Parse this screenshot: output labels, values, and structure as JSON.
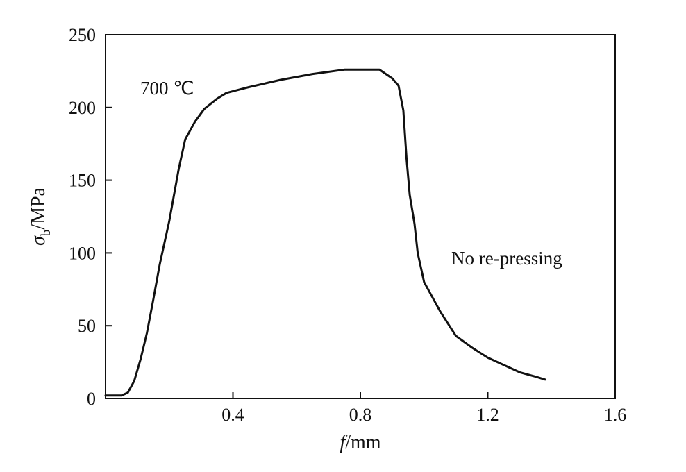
{
  "chart_data": {
    "type": "line",
    "xlabel": {
      "italic": "f",
      "rest": "/mm"
    },
    "ylabel": {
      "symbol": "σ",
      "subscript": "b",
      "rest": "/MPa"
    },
    "xlim": [
      0,
      1.6
    ],
    "ylim": [
      0,
      250
    ],
    "x_ticks": [
      0.4,
      0.8,
      1.2,
      1.6
    ],
    "x_tick_labels": [
      "0.4",
      "0.8",
      "1.2",
      "1.6"
    ],
    "y_ticks": [
      0,
      50,
      100,
      150,
      200,
      250
    ],
    "y_tick_labels": [
      "0",
      "50",
      "100",
      "150",
      "200",
      "250"
    ],
    "grid": false,
    "annotations": [
      "700 ℃",
      "No re-pressing"
    ],
    "series": [
      {
        "color": "#111111",
        "points": [
          [
            0.0,
            2
          ],
          [
            0.05,
            2
          ],
          [
            0.07,
            4
          ],
          [
            0.09,
            12
          ],
          [
            0.11,
            27
          ],
          [
            0.13,
            45
          ],
          [
            0.15,
            68
          ],
          [
            0.17,
            92
          ],
          [
            0.2,
            122
          ],
          [
            0.23,
            158
          ],
          [
            0.25,
            178
          ],
          [
            0.28,
            190
          ],
          [
            0.31,
            199
          ],
          [
            0.35,
            206
          ],
          [
            0.38,
            210
          ],
          [
            0.45,
            214
          ],
          [
            0.55,
            219
          ],
          [
            0.65,
            223
          ],
          [
            0.75,
            226
          ],
          [
            0.86,
            226
          ],
          [
            0.88,
            223
          ],
          [
            0.9,
            220
          ],
          [
            0.92,
            215
          ],
          [
            0.935,
            198
          ],
          [
            0.945,
            165
          ],
          [
            0.955,
            140
          ],
          [
            0.97,
            120
          ],
          [
            0.98,
            100
          ],
          [
            1.0,
            80
          ],
          [
            1.05,
            60
          ],
          [
            1.1,
            43
          ],
          [
            1.15,
            35
          ],
          [
            1.2,
            28
          ],
          [
            1.25,
            23
          ],
          [
            1.3,
            18
          ],
          [
            1.35,
            15
          ],
          [
            1.38,
            13
          ]
        ]
      }
    ]
  }
}
